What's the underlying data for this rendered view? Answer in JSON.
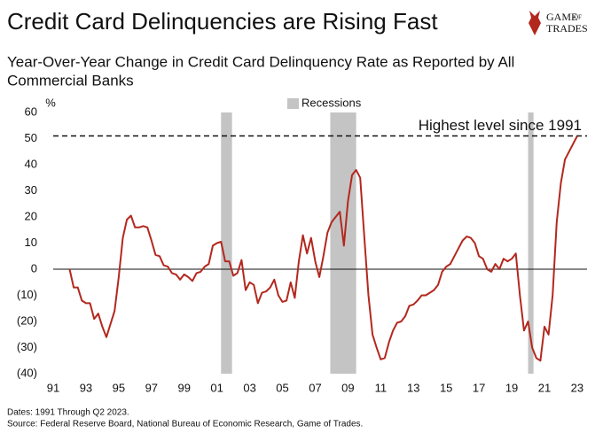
{
  "chart_data": {
    "type": "line",
    "title": "Credit Card Delinquencies are Rising Fast",
    "subtitle": [
      "Year-Over-Year Change in Credit Card Delinquency Rate as Reported by All",
      "Commercial Banks"
    ],
    "y_unit": "%",
    "logo": [
      "GAME",
      "OF",
      "TRADES"
    ],
    "footnotes": [
      "Dates: 1991 Through Q2 2023.",
      "Source: Federal Reserve Board, National Bureau of Economic Research, Game of Trades."
    ],
    "recessions": {
      "name": "Recessions",
      "color": "#c4c4c4",
      "spans": [
        [
          2001.25,
          2001.92
        ],
        [
          2007.92,
          2009.5
        ],
        [
          2020.0,
          2020.33
        ]
      ]
    },
    "reference_line": {
      "value": 51,
      "label": "Highest level since 1991"
    },
    "xlim": [
      1991,
      2023.6
    ],
    "xticks": [
      {
        "value": 1991,
        "label": "91"
      },
      {
        "value": 1993,
        "label": "93"
      },
      {
        "value": 1995,
        "label": "95"
      },
      {
        "value": 1997,
        "label": "97"
      },
      {
        "value": 1999,
        "label": "99"
      },
      {
        "value": 2001,
        "label": "01"
      },
      {
        "value": 2003,
        "label": "03"
      },
      {
        "value": 2005,
        "label": "05"
      },
      {
        "value": 2007,
        "label": "07"
      },
      {
        "value": 2009,
        "label": "09"
      },
      {
        "value": 2011,
        "label": "11"
      },
      {
        "value": 2013,
        "label": "13"
      },
      {
        "value": 2015,
        "label": "15"
      },
      {
        "value": 2017,
        "label": "17"
      },
      {
        "value": 2019,
        "label": "19"
      },
      {
        "value": 2021,
        "label": "21"
      },
      {
        "value": 2023,
        "label": "23"
      }
    ],
    "ylim": [
      -40,
      60
    ],
    "yticks": [
      60,
      50,
      40,
      30,
      20,
      10,
      0,
      {
        "value": -10,
        "label": "(10)"
      },
      {
        "value": -20,
        "label": "(20)"
      },
      {
        "value": -30,
        "label": "(30)"
      },
      {
        "value": -40,
        "label": "(40)"
      }
    ],
    "x": [
      1992,
      1992.25,
      1992.5,
      1992.75,
      1993,
      1993.25,
      1993.5,
      1993.75,
      1994,
      1994.25,
      1994.5,
      1994.75,
      1995,
      1995.25,
      1995.5,
      1995.75,
      1996,
      1996.25,
      1996.5,
      1996.75,
      1997,
      1997.25,
      1997.5,
      1997.75,
      1998,
      1998.25,
      1998.5,
      1998.75,
      1999,
      1999.25,
      1999.5,
      1999.75,
      2000,
      2000.25,
      2000.5,
      2000.75,
      2001,
      2001.25,
      2001.5,
      2001.75,
      2002,
      2002.25,
      2002.5,
      2002.75,
      2003,
      2003.25,
      2003.5,
      2003.75,
      2004,
      2004.25,
      2004.5,
      2004.75,
      2005,
      2005.25,
      2005.5,
      2005.75,
      2006,
      2006.25,
      2006.5,
      2006.75,
      2007,
      2007.25,
      2007.5,
      2007.75,
      2008,
      2008.25,
      2008.5,
      2008.75,
      2009,
      2009.25,
      2009.5,
      2009.75,
      2010,
      2010.25,
      2010.5,
      2010.75,
      2011,
      2011.25,
      2011.5,
      2011.75,
      2012,
      2012.25,
      2012.5,
      2012.75,
      2013,
      2013.25,
      2013.5,
      2013.75,
      2014,
      2014.25,
      2014.5,
      2014.75,
      2015,
      2015.25,
      2015.5,
      2015.75,
      2016,
      2016.25,
      2016.5,
      2016.75,
      2017,
      2017.25,
      2017.5,
      2017.75,
      2018,
      2018.25,
      2018.5,
      2018.75,
      2019,
      2019.25,
      2019.5,
      2019.75,
      2020,
      2020.25,
      2020.5,
      2020.75,
      2021,
      2021.25,
      2021.5,
      2021.75,
      2022,
      2022.25,
      2022.5,
      2022.75,
      2023
    ],
    "series": [
      {
        "color": "#b3281e",
        "values": [
          0,
          -7,
          -7,
          -12,
          -13,
          -13,
          -19,
          -17,
          -22,
          -26,
          -21,
          -16,
          -3,
          12,
          19,
          20.5,
          16,
          16,
          16.5,
          16,
          11,
          5.5,
          5,
          1.5,
          1,
          -1.5,
          -2,
          -4,
          -2,
          -3,
          -4.5,
          -1.5,
          -1,
          1,
          2,
          9,
          10,
          10.5,
          3,
          3,
          -2.5,
          -1.5,
          3.5,
          -8,
          -5,
          -6,
          -13,
          -9,
          -8.5,
          -7,
          -4,
          -10,
          -12.5,
          -12,
          -5,
          -11,
          3,
          13,
          6,
          12,
          3,
          -3,
          5,
          14,
          18,
          20,
          22,
          9,
          26,
          36,
          38,
          35,
          12,
          -10,
          -25,
          -30,
          -34.5,
          -34,
          -28,
          -23.5,
          -20.5,
          -20,
          -18,
          -14,
          -13.5,
          -12,
          -10,
          -10,
          -9,
          -8,
          -6,
          -1,
          1,
          2,
          5,
          8,
          11,
          12.5,
          12,
          10,
          5,
          4,
          0,
          -1,
          2,
          0,
          4,
          3,
          4,
          6,
          -10,
          -23.5,
          -20,
          -30,
          -34,
          -35,
          -22,
          -25,
          -10,
          18,
          33,
          42,
          45,
          48,
          51
        ]
      }
    ]
  }
}
